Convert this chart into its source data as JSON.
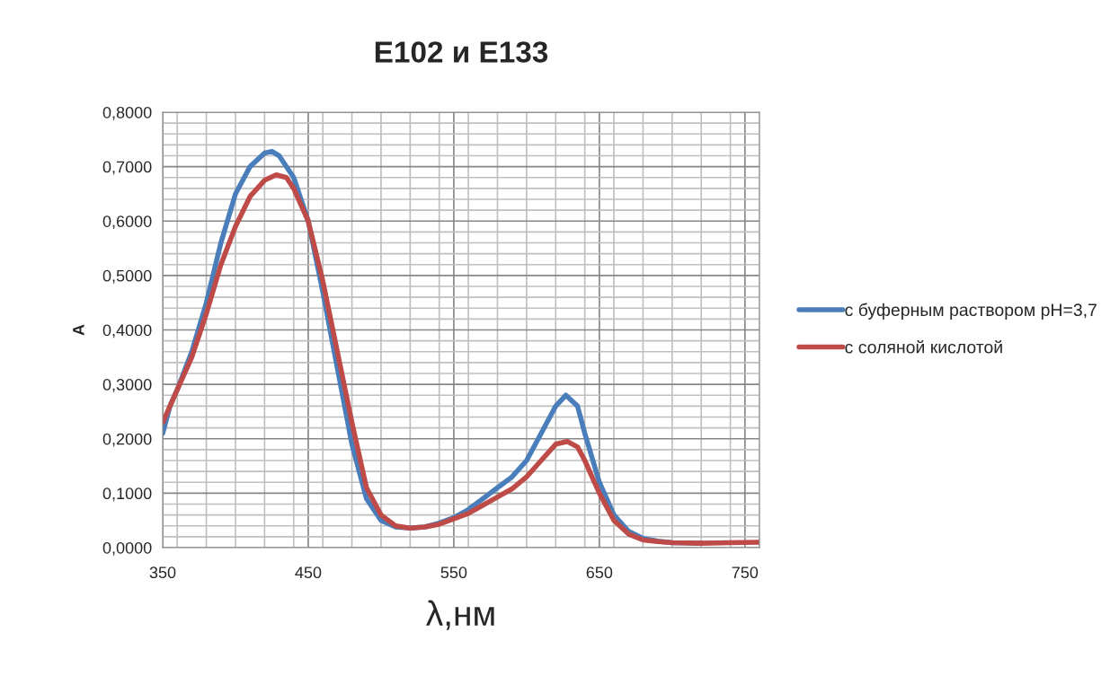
{
  "chart_data": {
    "type": "line",
    "title": "E102 и E133",
    "xlabel": "λ,нм",
    "ylabel": "A",
    "xlim": [
      350,
      760
    ],
    "xticks": [
      350,
      450,
      550,
      650,
      750
    ],
    "ylim": [
      0,
      0.8
    ],
    "yticks": [
      {
        "value": 0,
        "label": "0,0000"
      },
      {
        "value": 0.1,
        "label": "0,1000"
      },
      {
        "value": 0.2,
        "label": "0,2000"
      },
      {
        "value": 0.3,
        "label": "0,3000"
      },
      {
        "value": 0.4,
        "label": "0,4000"
      },
      {
        "value": 0.5,
        "label": "0,5000"
      },
      {
        "value": 0.6,
        "label": "0,6000"
      },
      {
        "value": 0.7,
        "label": "0,7000"
      },
      {
        "value": 0.8,
        "label": "0,8000"
      }
    ],
    "grid": true,
    "legend": "right",
    "marker": "none",
    "line_style": "solid",
    "series": [
      {
        "name": "с буферным раствором pH=3,7",
        "color": "#4a7ebb",
        "x": [
          350,
          355,
          360,
          370,
          380,
          390,
          400,
          410,
          420,
          425,
          430,
          440,
          450,
          460,
          470,
          480,
          490,
          500,
          510,
          520,
          530,
          540,
          550,
          560,
          570,
          580,
          590,
          600,
          610,
          620,
          627,
          635,
          640,
          650,
          660,
          670,
          680,
          690,
          700,
          720
        ],
        "values": [
          0.21,
          0.26,
          0.29,
          0.36,
          0.45,
          0.56,
          0.65,
          0.7,
          0.725,
          0.728,
          0.72,
          0.68,
          0.6,
          0.47,
          0.33,
          0.19,
          0.09,
          0.05,
          0.038,
          0.036,
          0.038,
          0.045,
          0.055,
          0.07,
          0.09,
          0.11,
          0.13,
          0.16,
          0.21,
          0.26,
          0.28,
          0.26,
          0.21,
          0.12,
          0.06,
          0.03,
          0.017,
          0.012,
          0.009,
          0.008
        ]
      },
      {
        "name": "с соляной кислотой",
        "color": "#be4b48",
        "x": [
          350,
          355,
          360,
          370,
          380,
          390,
          400,
          410,
          420,
          428,
          435,
          440,
          450,
          460,
          470,
          480,
          490,
          500,
          510,
          520,
          530,
          540,
          550,
          560,
          570,
          580,
          590,
          600,
          610,
          620,
          628,
          635,
          640,
          650,
          660,
          670,
          680,
          690,
          700,
          720,
          740,
          760
        ],
        "values": [
          0.23,
          0.26,
          0.29,
          0.35,
          0.43,
          0.52,
          0.59,
          0.645,
          0.675,
          0.685,
          0.68,
          0.66,
          0.6,
          0.49,
          0.36,
          0.23,
          0.11,
          0.06,
          0.04,
          0.036,
          0.038,
          0.043,
          0.053,
          0.063,
          0.078,
          0.093,
          0.108,
          0.13,
          0.16,
          0.19,
          0.195,
          0.185,
          0.16,
          0.1,
          0.05,
          0.025,
          0.014,
          0.011,
          0.009,
          0.008,
          0.009,
          0.01
        ]
      }
    ]
  }
}
